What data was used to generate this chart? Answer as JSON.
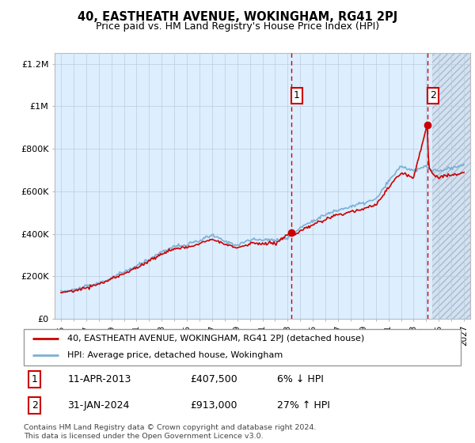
{
  "title": "40, EASTHEATH AVENUE, WOKINGHAM, RG41 2PJ",
  "subtitle": "Price paid vs. HM Land Registry's House Price Index (HPI)",
  "footer": "Contains HM Land Registry data © Crown copyright and database right 2024.\nThis data is licensed under the Open Government Licence v3.0.",
  "legend_line1": "40, EASTHEATH AVENUE, WOKINGHAM, RG41 2PJ (detached house)",
  "legend_line2": "HPI: Average price, detached house, Wokingham",
  "sale1_date": "11-APR-2013",
  "sale1_price": "£407,500",
  "sale1_hpi": "6% ↓ HPI",
  "sale2_date": "31-JAN-2024",
  "sale2_price": "£913,000",
  "sale2_hpi": "27% ↑ HPI",
  "sale1_year": 2013.28,
  "sale1_value": 407500,
  "sale2_year": 2024.08,
  "sale2_value": 913000,
  "ylim": [
    0,
    1250000
  ],
  "xlim_left": 1994.5,
  "xlim_right": 2027.5,
  "future_start": 2024.5,
  "red_color": "#cc0000",
  "blue_color": "#7ab0d4",
  "plot_bg": "#ddeeff",
  "hatch_color": "#aabbcc",
  "grid_color": "#bbccdd"
}
